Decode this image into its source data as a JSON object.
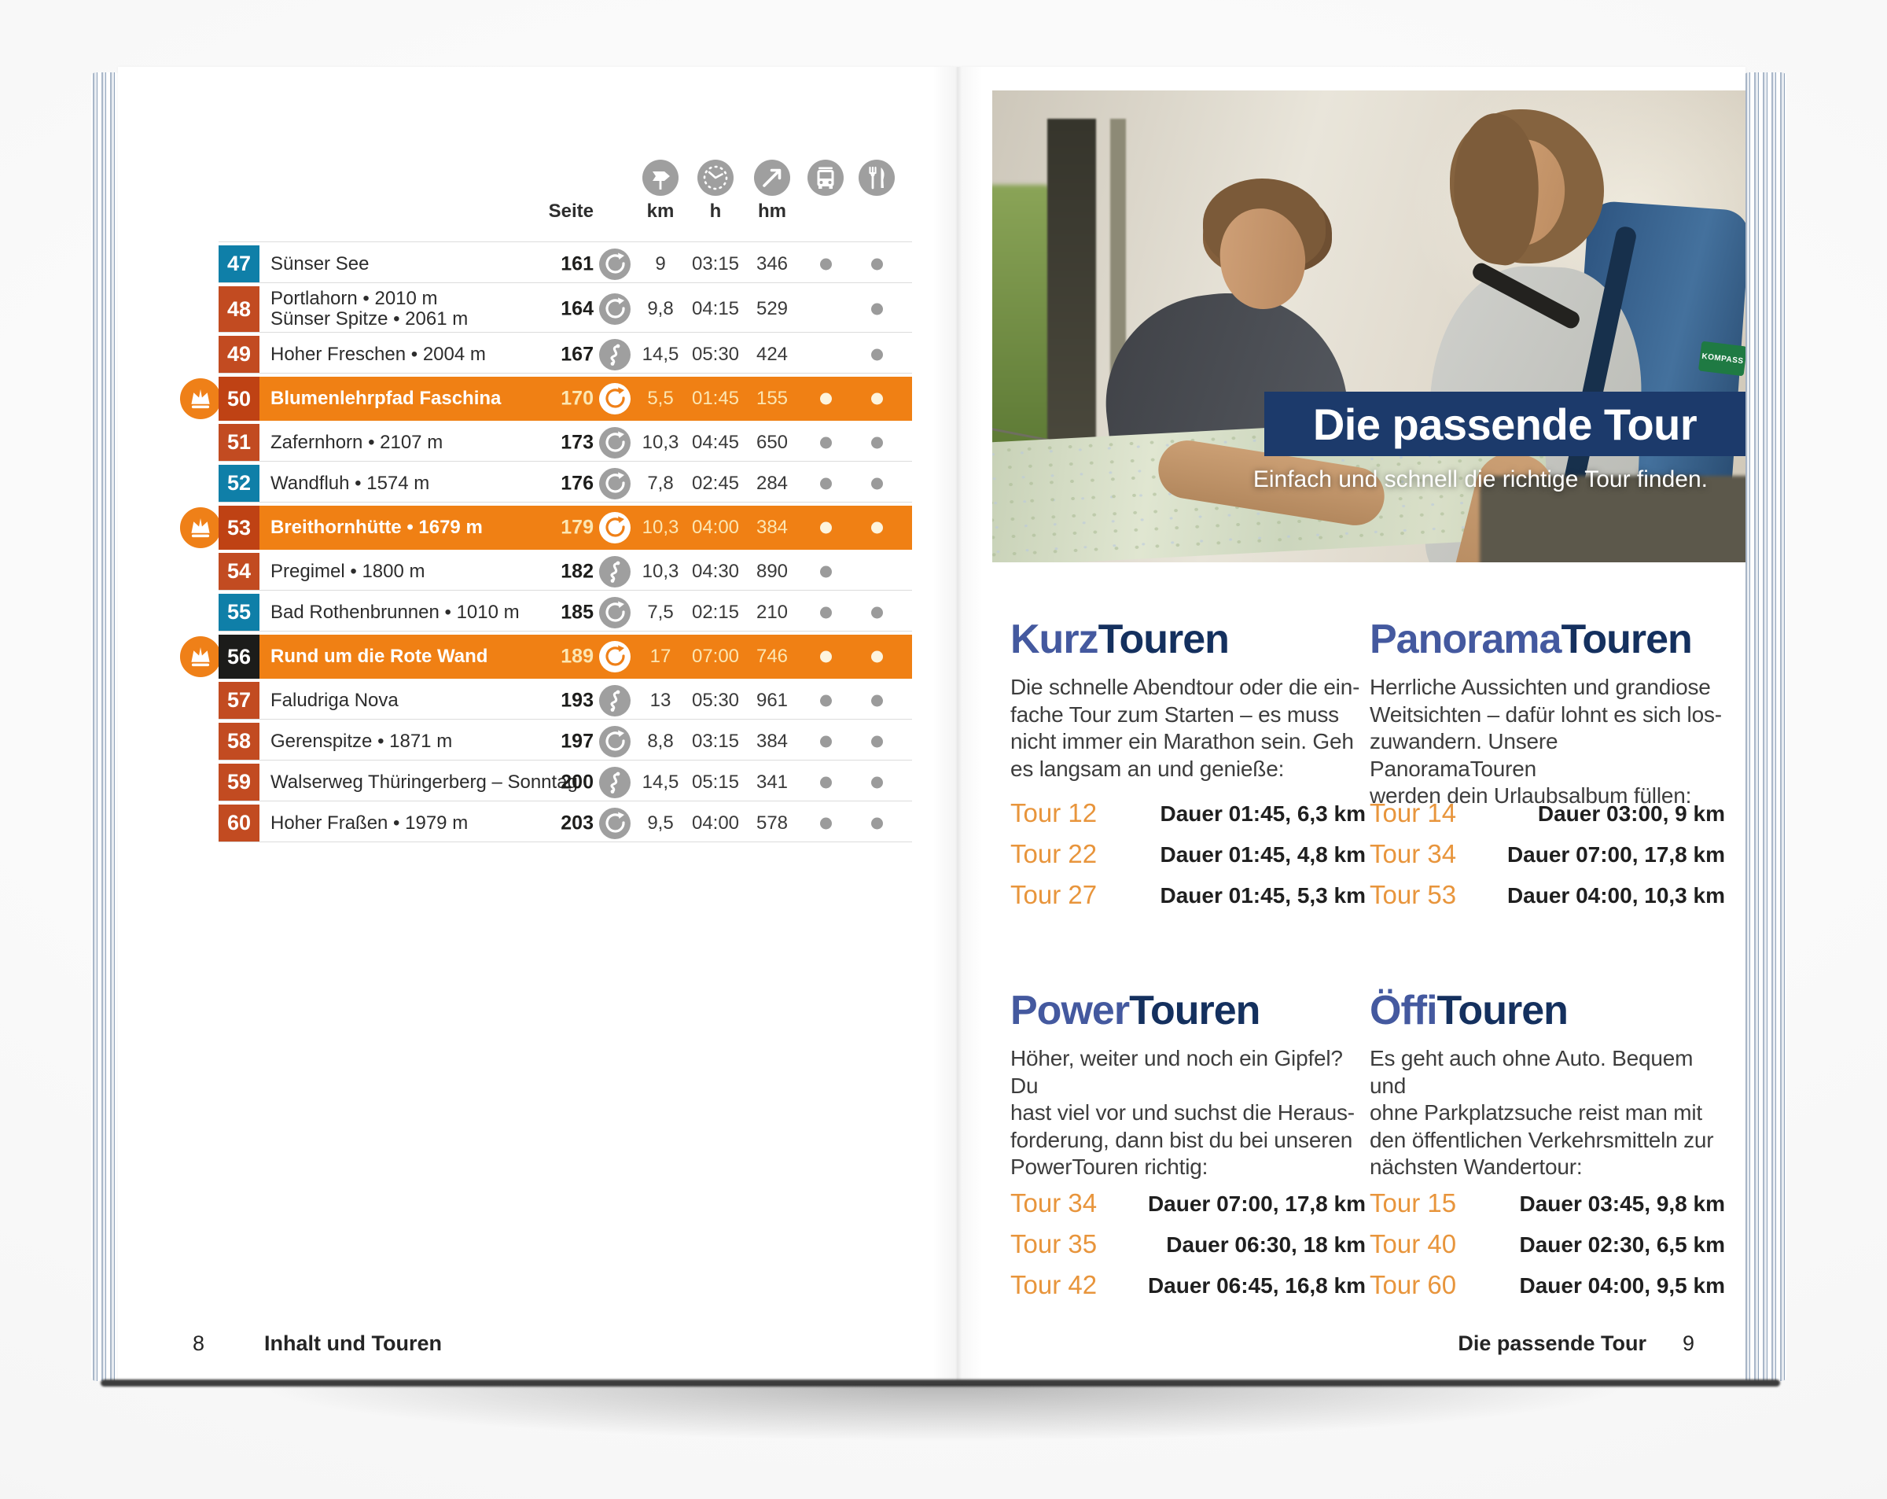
{
  "book": {
    "colors": {
      "highlight_orange": "#f08014",
      "badge_red": "#c24b21",
      "badge_teal": "#0f7fa8",
      "badge_black": "#1c1c1a",
      "banner_navy": "#1c3a6b",
      "heading_accent_blue": "#44599f",
      "heading_dark_navy": "#14305e",
      "tour_label_orange": "#e8953c",
      "kompass_green": "#1f7a43"
    },
    "left_page": {
      "page_number": "8",
      "footer_label": "Inhalt und Touren",
      "table": {
        "column_headers": {
          "seite": "Seite",
          "km": "km",
          "h": "h",
          "hm": "hm"
        },
        "header_icons": [
          "signpost-icon",
          "clock-icon",
          "ascent-icon",
          "bus-icon",
          "restaurant-icon"
        ],
        "rows": [
          {
            "nr": "47",
            "badge": "teal",
            "name": "Sünser See",
            "page": "161",
            "route": "loop",
            "km": "9",
            "h": "03:15",
            "hm": "346",
            "bus": true,
            "food": true,
            "highlight": false,
            "crown": false
          },
          {
            "nr": "48",
            "badge": "red",
            "name": "Portlahorn • 2010 m\nSünser Spitze • 2061 m",
            "page": "164",
            "route": "loop",
            "km": "9,8",
            "h": "04:15",
            "hm": "529",
            "bus": false,
            "food": true,
            "highlight": false,
            "crown": false
          },
          {
            "nr": "49",
            "badge": "red",
            "name": "Hoher Freschen • 2004 m",
            "page": "167",
            "route": "oneway",
            "km": "14,5",
            "h": "05:30",
            "hm": "424",
            "bus": false,
            "food": true,
            "highlight": false,
            "crown": false
          },
          {
            "nr": "50",
            "badge": "darkred",
            "name": "Blumenlehrpfad Faschina",
            "page": "170",
            "route": "loop",
            "km": "5,5",
            "h": "01:45",
            "hm": "155",
            "bus": true,
            "food": true,
            "highlight": true,
            "crown": true
          },
          {
            "nr": "51",
            "badge": "red",
            "name": "Zafernhorn • 2107 m",
            "page": "173",
            "route": "loop",
            "km": "10,3",
            "h": "04:45",
            "hm": "650",
            "bus": true,
            "food": true,
            "highlight": false,
            "crown": false
          },
          {
            "nr": "52",
            "badge": "teal",
            "name": "Wandfluh • 1574 m",
            "page": "176",
            "route": "loop",
            "km": "7,8",
            "h": "02:45",
            "hm": "284",
            "bus": true,
            "food": true,
            "highlight": false,
            "crown": false
          },
          {
            "nr": "53",
            "badge": "darkred",
            "name": "Breithornhütte • 1679 m",
            "page": "179",
            "route": "loop",
            "km": "10,3",
            "h": "04:00",
            "hm": "384",
            "bus": true,
            "food": true,
            "highlight": true,
            "crown": true
          },
          {
            "nr": "54",
            "badge": "red",
            "name": "Pregimel • 1800 m",
            "page": "182",
            "route": "oneway",
            "km": "10,3",
            "h": "04:30",
            "hm": "890",
            "bus": true,
            "food": false,
            "highlight": false,
            "crown": false
          },
          {
            "nr": "55",
            "badge": "teal",
            "name": "Bad Rothenbrunnen • 1010 m",
            "page": "185",
            "route": "loop",
            "km": "7,5",
            "h": "02:15",
            "hm": "210",
            "bus": true,
            "food": true,
            "highlight": false,
            "crown": false
          },
          {
            "nr": "56",
            "badge": "black",
            "name": "Rund um die Rote Wand",
            "page": "189",
            "route": "loop",
            "km": "17",
            "h": "07:00",
            "hm": "746",
            "bus": true,
            "food": true,
            "highlight": true,
            "crown": true
          },
          {
            "nr": "57",
            "badge": "red",
            "name": "Faludriga Nova",
            "page": "193",
            "route": "oneway",
            "km": "13",
            "h": "05:30",
            "hm": "961",
            "bus": true,
            "food": true,
            "highlight": false,
            "crown": false
          },
          {
            "nr": "58",
            "badge": "red",
            "name": "Gerenspitze • 1871 m",
            "page": "197",
            "route": "loop",
            "km": "8,8",
            "h": "03:15",
            "hm": "384",
            "bus": true,
            "food": true,
            "highlight": false,
            "crown": false
          },
          {
            "nr": "59",
            "badge": "red",
            "name": "Walserweg Thüringerberg – Sonntag",
            "page": "200",
            "route": "oneway",
            "km": "14,5",
            "h": "05:15",
            "hm": "341",
            "bus": true,
            "food": true,
            "highlight": false,
            "crown": false
          },
          {
            "nr": "60",
            "badge": "red",
            "name": "Hoher Fraßen • 1979 m",
            "page": "203",
            "route": "loop",
            "km": "9,5",
            "h": "04:00",
            "hm": "578",
            "bus": true,
            "food": true,
            "highlight": false,
            "crown": false
          }
        ]
      }
    },
    "right_page": {
      "hero": {
        "title": "Die passende Tour",
        "subtitle": "Einfach und schnell die richtige Tour finden.",
        "logo_tag": "KOMPASS"
      },
      "sections": [
        {
          "title_accent": "Kurz",
          "title_rest": "Touren",
          "text": "Die schnelle Abendtour oder die ein-\nfache Tour zum Starten – es muss\nnicht immer ein Marathon sein. Geh\nes langsam an und genieße:",
          "tours": [
            {
              "label": "Tour 12",
              "value": "Dauer 01:45, 6,3 km"
            },
            {
              "label": "Tour 22",
              "value": "Dauer 01:45, 4,8 km"
            },
            {
              "label": "Tour 27",
              "value": "Dauer 01:45, 5,3 km"
            }
          ]
        },
        {
          "title_accent": "Panorama",
          "title_rest": "Touren",
          "text": "Herrliche Aussichten und grandiose\nWeitsichten – dafür lohnt es sich los-\nzuwandern. Unsere PanoramaTouren\nwerden dein Urlaubsalbum füllen:",
          "tours": [
            {
              "label": "Tour 14",
              "value": "Dauer 03:00, 9 km"
            },
            {
              "label": "Tour 34",
              "value": "Dauer 07:00, 17,8 km"
            },
            {
              "label": "Tour 53",
              "value": "Dauer 04:00, 10,3 km"
            }
          ]
        },
        {
          "title_accent": "Power",
          "title_rest": "Touren",
          "text": "Höher, weiter und noch ein Gipfel? Du\nhast viel vor und suchst die Heraus-\nforderung, dann bist du bei unseren\nPowerTouren richtig:",
          "tours": [
            {
              "label": "Tour 34",
              "value": "Dauer 07:00, 17,8 km"
            },
            {
              "label": "Tour 35",
              "value": "Dauer 06:30, 18 km"
            },
            {
              "label": "Tour 42",
              "value": "Dauer 06:45, 16,8 km"
            }
          ]
        },
        {
          "title_accent": "Öffi",
          "title_rest": "Touren",
          "text": "Es geht auch ohne Auto. Bequem und\nohne Parkplatzsuche reist man mit\nden öffentlichen Verkehrsmitteln zur\nnächsten Wandertour:",
          "tours": [
            {
              "label": "Tour 15",
              "value": "Dauer 03:45, 9,8 km"
            },
            {
              "label": "Tour 40",
              "value": "Dauer 02:30, 6,5 km"
            },
            {
              "label": "Tour 60",
              "value": "Dauer 04:00, 9,5 km"
            }
          ]
        }
      ],
      "footer_label": "Die passende Tour",
      "page_number": "9"
    }
  }
}
